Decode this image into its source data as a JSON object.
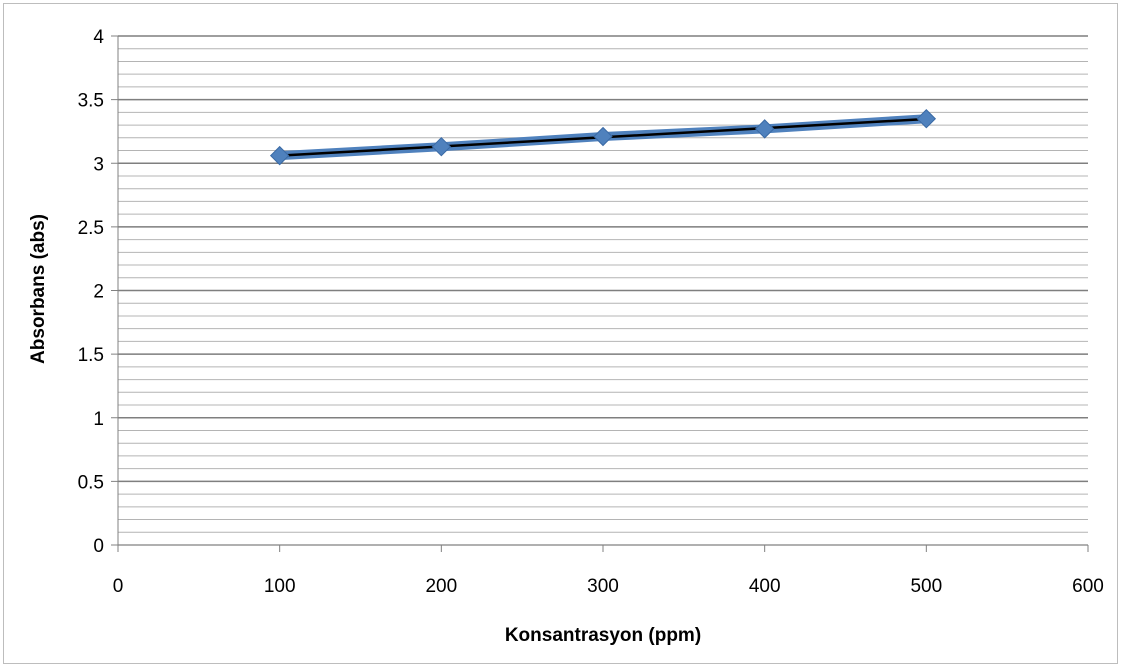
{
  "chart_data": {
    "type": "scatter",
    "title": "",
    "xlabel": "Konsantrasyon (ppm)",
    "ylabel": "Absorbans (abs)",
    "xlim": [
      0,
      600
    ],
    "ylim": [
      0,
      4
    ],
    "x_ticks": [
      0,
      100,
      200,
      300,
      400,
      500,
      600
    ],
    "y_ticks": [
      0,
      0.5,
      1,
      1.5,
      2,
      2.5,
      3,
      3.5,
      4
    ],
    "x_tick_labels": [
      "0",
      "100",
      "200",
      "300",
      "400",
      "500",
      "600"
    ],
    "y_tick_labels": [
      "0",
      "0.5",
      "1",
      "1.5",
      "2",
      "2.5",
      "3",
      "3.5",
      "4"
    ],
    "grid": true,
    "minor_grid": true,
    "legend": "none",
    "series": [
      {
        "x": [
          100,
          200,
          300,
          400,
          500
        ],
        "y": [
          3.06,
          3.13,
          3.21,
          3.27,
          3.35
        ],
        "color": "#4f81bd",
        "marker": "diamond"
      }
    ],
    "trendline": {
      "type": "linear",
      "color": "#000000"
    }
  }
}
